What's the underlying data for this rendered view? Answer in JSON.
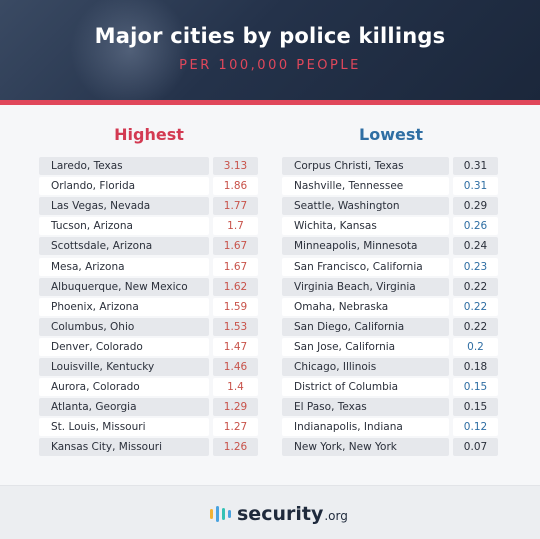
{
  "header": {
    "title": "Major cities by police killings",
    "subtitle": "PER 100,000 PEOPLE"
  },
  "highest": {
    "title": "Highest",
    "rows": [
      {
        "city": "Laredo, Texas",
        "value": "3.13"
      },
      {
        "city": "Orlando, Florida",
        "value": "1.86"
      },
      {
        "city": "Las Vegas, Nevada",
        "value": "1.77"
      },
      {
        "city": "Tucson, Arizona",
        "value": "1.7"
      },
      {
        "city": "Scottsdale, Arizona",
        "value": "1.67"
      },
      {
        "city": "Mesa, Arizona",
        "value": "1.67"
      },
      {
        "city": "Albuquerque, New Mexico",
        "value": "1.62"
      },
      {
        "city": "Phoenix, Arizona",
        "value": "1.59"
      },
      {
        "city": "Columbus, Ohio",
        "value": "1.53"
      },
      {
        "city": "Denver, Colorado",
        "value": "1.47"
      },
      {
        "city": "Louisville, Kentucky",
        "value": "1.46"
      },
      {
        "city": "Aurora, Colorado",
        "value": "1.4"
      },
      {
        "city": "Atlanta, Georgia",
        "value": "1.29"
      },
      {
        "city": "St. Louis, Missouri",
        "value": "1.27"
      },
      {
        "city": "Kansas City, Missouri",
        "value": "1.26"
      }
    ]
  },
  "lowest": {
    "title": "Lowest",
    "rows": [
      {
        "city": "Corpus Christi, Texas",
        "value": "0.31"
      },
      {
        "city": "Nashville, Tennessee",
        "value": "0.31"
      },
      {
        "city": "Seattle, Washington",
        "value": "0.29"
      },
      {
        "city": "Wichita, Kansas",
        "value": "0.26"
      },
      {
        "city": "Minneapolis, Minnesota",
        "value": "0.24"
      },
      {
        "city": "San Francisco, California",
        "value": "0.23"
      },
      {
        "city": "Virginia Beach, Virginia",
        "value": "0.22"
      },
      {
        "city": "Omaha, Nebraska",
        "value": "0.22"
      },
      {
        "city": "San Diego, California",
        "value": "0.22"
      },
      {
        "city": "San Jose, California",
        "value": "0.2"
      },
      {
        "city": "Chicago, Illinois",
        "value": "0.18"
      },
      {
        "city": "District of Columbia",
        "value": "0.15"
      },
      {
        "city": "El Paso, Texas",
        "value": "0.15"
      },
      {
        "city": "Indianapolis, Indiana",
        "value": "0.12"
      },
      {
        "city": "New York, New York",
        "value": "0.07"
      }
    ]
  },
  "logo": {
    "brand": "security",
    "tld": ".org",
    "bar_colors": [
      "#f2b233",
      "#4aa3df",
      "#33c1b5",
      "#4aa3df"
    ]
  },
  "colors": {
    "accent_red": "#e0475b",
    "highest_title": "#d33a52",
    "lowest_title": "#2f6ea3",
    "highest_values": "#c8524a"
  }
}
